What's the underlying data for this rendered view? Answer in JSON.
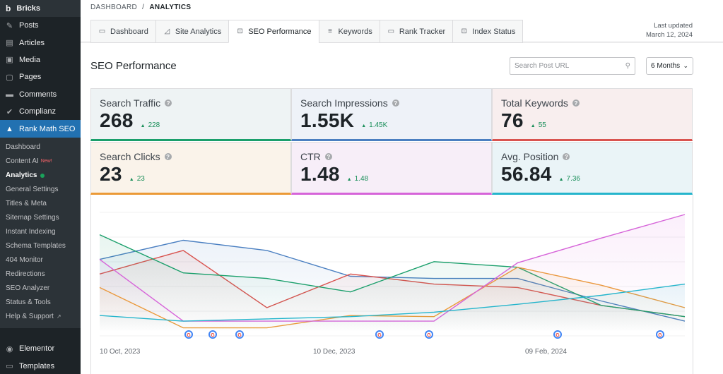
{
  "sidebar": {
    "brand": "Bricks",
    "menu": [
      {
        "label": "Posts",
        "icon": "pin-icon"
      },
      {
        "label": "Articles",
        "icon": "document-icon"
      },
      {
        "label": "Media",
        "icon": "media-icon"
      },
      {
        "label": "Pages",
        "icon": "pages-icon"
      },
      {
        "label": "Comments",
        "icon": "comment-icon"
      },
      {
        "label": "Complianz",
        "icon": "check-icon"
      },
      {
        "label": "Rank Math SEO",
        "icon": "rankmath-icon"
      }
    ],
    "submenu": [
      {
        "label": "Dashboard"
      },
      {
        "label": "Content AI",
        "badge": "New!"
      },
      {
        "label": "Analytics"
      },
      {
        "label": "General Settings"
      },
      {
        "label": "Titles & Meta"
      },
      {
        "label": "Sitemap Settings"
      },
      {
        "label": "Instant Indexing"
      },
      {
        "label": "Schema Templates"
      },
      {
        "label": "404 Monitor"
      },
      {
        "label": "Redirections"
      },
      {
        "label": "SEO Analyzer"
      },
      {
        "label": "Status & Tools"
      },
      {
        "label": "Help & Support"
      }
    ],
    "bottom": [
      {
        "label": "Elementor",
        "icon": "elementor-icon"
      },
      {
        "label": "Templates",
        "icon": "folder-icon"
      }
    ]
  },
  "breadcrumb": {
    "root": "DASHBOARD",
    "sep": "/",
    "current": "ANALYTICS"
  },
  "tabs": [
    {
      "label": "Dashboard",
      "icon": "monitor-icon"
    },
    {
      "label": "Site Analytics",
      "icon": "chart-icon"
    },
    {
      "label": "SEO Performance",
      "icon": "target-icon"
    },
    {
      "label": "Keywords",
      "icon": "list-icon"
    },
    {
      "label": "Rank Tracker",
      "icon": "monitor-icon"
    },
    {
      "label": "Index Status",
      "icon": "scan-icon"
    }
  ],
  "updated": {
    "label": "Last updated",
    "date": "March 12, 2024"
  },
  "page_title": "SEO Performance",
  "search": {
    "placeholder": "Search Post URL"
  },
  "period": {
    "selected": "6 Months"
  },
  "stats": [
    {
      "label": "Search Traffic",
      "value": "268",
      "change": "228",
      "color": "#1a9f6b",
      "bg": "#eef3f4"
    },
    {
      "label": "Search Impressions",
      "value": "1.55K",
      "change": "1.45K",
      "color": "#4a7fc1",
      "bg": "#eef2f8"
    },
    {
      "label": "Total Keywords",
      "value": "76",
      "change": "55",
      "color": "#d9534f",
      "bg": "#f8eeee"
    },
    {
      "label": "Search Clicks",
      "value": "23",
      "change": "23",
      "color": "#eb9a37",
      "bg": "#faf3ea"
    },
    {
      "label": "CTR",
      "value": "1.48",
      "change": "1.48",
      "color": "#d664d9",
      "bg": "#f7eef8"
    },
    {
      "label": "Avg. Position",
      "value": "56.84",
      "change": "7.36",
      "color": "#25b5cc",
      "bg": "#eaf4f7"
    }
  ],
  "chart_data": {
    "type": "line",
    "x": [
      "2023-10-10",
      "2023-11-02",
      "2023-11-25",
      "2023-12-14",
      "2024-01-05",
      "2024-01-25",
      "2024-02-17",
      "2024-03-12"
    ],
    "xtick_labels": [
      "10 Oct, 2023",
      "10 Dec, 2023",
      "09 Feb, 2024"
    ],
    "series": [
      {
        "color": "#4a7fc1",
        "values": [
          0.55,
          0.72,
          0.63,
          0.4,
          0.38,
          0.38,
          0.18,
          0.0
        ]
      },
      {
        "color": "#d9534f",
        "values": [
          0.42,
          0.63,
          0.12,
          0.42,
          0.33,
          0.3,
          0.14,
          0.04
        ]
      },
      {
        "color": "#1a9f6b",
        "values": [
          0.77,
          0.43,
          0.38,
          0.26,
          0.53,
          0.48,
          0.14,
          0.04
        ]
      },
      {
        "color": "#eb9a37",
        "values": [
          0.3,
          -0.06,
          -0.06,
          0.05,
          0.04,
          0.48,
          0.32,
          0.12
        ]
      },
      {
        "color": "#d664d9",
        "values": [
          0.55,
          0.0,
          0.0,
          0.0,
          0.0,
          0.52,
          0.74,
          0.95
        ]
      },
      {
        "color": "#25b5cc",
        "values": [
          0.05,
          0.0,
          0.02,
          0.04,
          0.08,
          0.15,
          0.23,
          0.33
        ]
      }
    ],
    "ylim": [
      -0.1,
      1.0
    ],
    "grid": true,
    "markers": [
      "google-marker",
      "google-marker",
      "google-marker",
      "google-marker",
      "google-marker",
      "google-marker",
      "google-marker"
    ]
  }
}
